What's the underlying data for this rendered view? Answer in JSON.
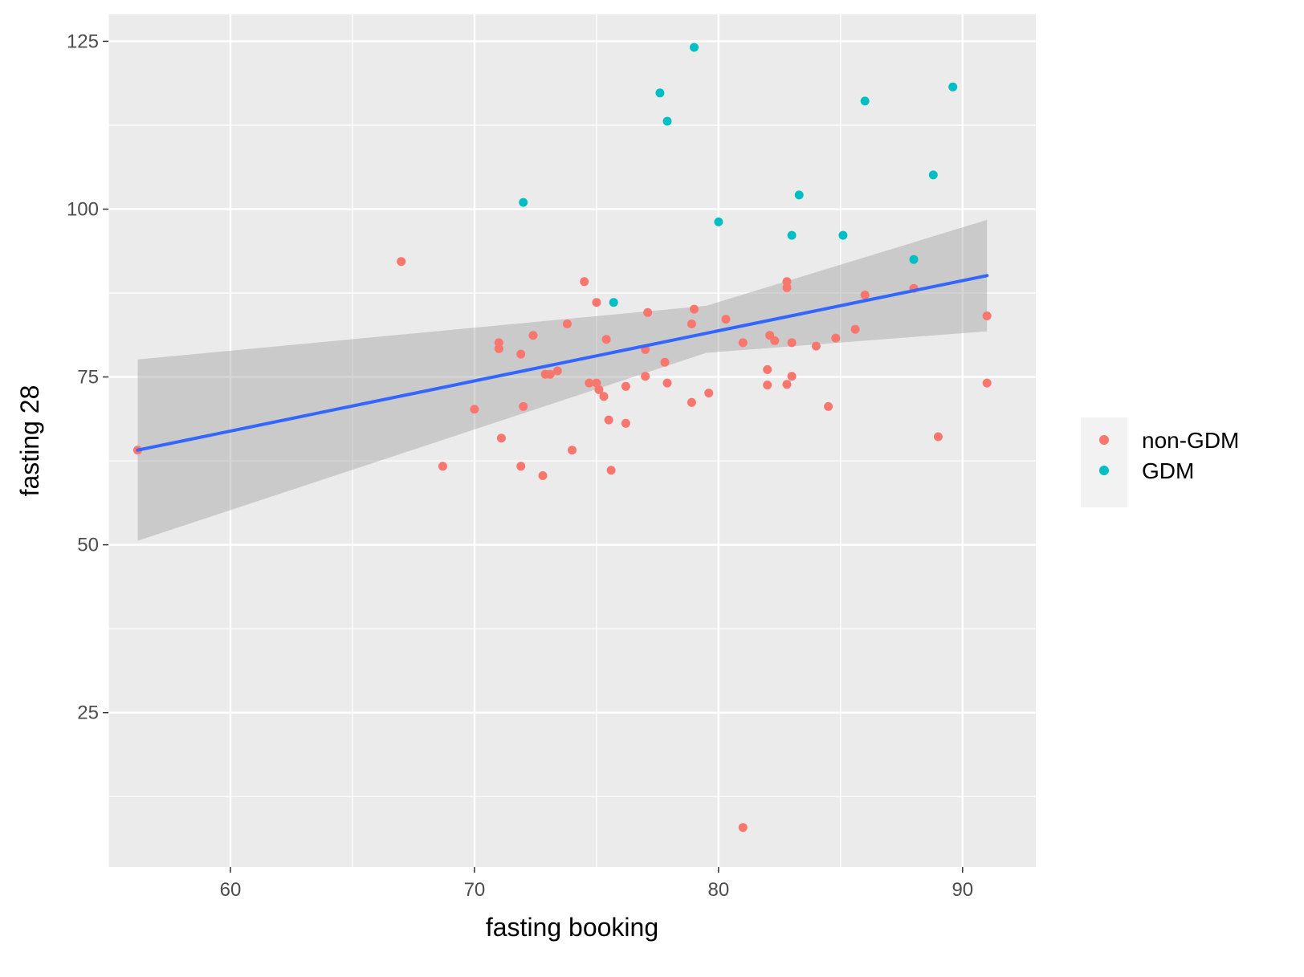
{
  "chart_data": {
    "type": "scatter",
    "xlabel": "fasting  booking",
    "ylabel": "fasting  28",
    "xlim": [
      55,
      93
    ],
    "ylim": [
      2,
      129
    ],
    "x_ticks": [
      60,
      70,
      80,
      90
    ],
    "y_ticks": [
      25,
      50,
      75,
      100,
      125
    ],
    "grid": true,
    "legend_position": "right",
    "series": [
      {
        "name": "non-GDM",
        "color": "#F8766D",
        "points": [
          [
            56.2,
            64.1
          ],
          [
            67,
            92.2
          ],
          [
            68.7,
            61.7
          ],
          [
            70,
            70.2
          ],
          [
            71,
            80.1
          ],
          [
            71,
            79.2
          ],
          [
            71.1,
            65.9
          ],
          [
            71.9,
            78.4
          ],
          [
            71.9,
            61.7
          ],
          [
            72,
            70.6
          ],
          [
            72.4,
            81.2
          ],
          [
            72.8,
            60.3
          ],
          [
            72.9,
            75.4
          ],
          [
            73.1,
            75.4
          ],
          [
            73.4,
            75.9
          ],
          [
            73.8,
            82.9
          ],
          [
            74,
            64.1
          ],
          [
            74.5,
            89.2
          ],
          [
            74.7,
            74.1
          ],
          [
            75,
            86.1
          ],
          [
            75,
            74.1
          ],
          [
            75.1,
            73.1
          ],
          [
            75.3,
            72.1
          ],
          [
            75.4,
            80.6
          ],
          [
            75.5,
            68.6
          ],
          [
            75.6,
            61.1
          ],
          [
            76.2,
            73.6
          ],
          [
            76.2,
            68.1
          ],
          [
            77,
            79.1
          ],
          [
            77,
            75.1
          ],
          [
            77.1,
            84.6
          ],
          [
            77.8,
            77.2
          ],
          [
            77.9,
            74.1
          ],
          [
            78.9,
            82.9
          ],
          [
            78.9,
            71.2
          ],
          [
            79,
            85.1
          ],
          [
            79.6,
            72.6
          ],
          [
            80.3,
            83.6
          ],
          [
            81,
            80.1
          ],
          [
            81,
            7.9
          ],
          [
            82,
            76.1
          ],
          [
            82,
            73.8
          ],
          [
            82.1,
            81.2
          ],
          [
            82.3,
            80.4
          ],
          [
            82.8,
            89.2
          ],
          [
            82.8,
            88.3
          ],
          [
            82.8,
            73.9
          ],
          [
            83,
            80.1
          ],
          [
            83,
            75.1
          ],
          [
            84,
            79.6
          ],
          [
            84.5,
            70.6
          ],
          [
            84.8,
            80.8
          ],
          [
            85.6,
            82.1
          ],
          [
            86,
            87.2
          ],
          [
            88,
            88.2
          ],
          [
            89,
            66.1
          ],
          [
            91,
            84.1
          ],
          [
            91,
            74.1
          ]
        ]
      },
      {
        "name": "GDM",
        "color": "#00BFC4",
        "points": [
          [
            72,
            101
          ],
          [
            75.7,
            86.1
          ],
          [
            77.6,
            117.3
          ],
          [
            77.9,
            113.1
          ],
          [
            79,
            124.1
          ],
          [
            80,
            98.1
          ],
          [
            83,
            96.1
          ],
          [
            83.3,
            102.1
          ],
          [
            85.1,
            96.1
          ],
          [
            86,
            116.1
          ],
          [
            88,
            92.5
          ],
          [
            88.8,
            105.1
          ],
          [
            89.6,
            118.2
          ]
        ]
      }
    ],
    "fit": {
      "method": "linear",
      "color": "#3366FF",
      "x_range": [
        56.2,
        91
      ],
      "y_at_ends": [
        64.1,
        90.1
      ],
      "band_lower": [
        50.6,
        81.8
      ],
      "band_upper": [
        77.6,
        98.4
      ],
      "band_mid_x": 79.5,
      "band_mid_lower": 78.6,
      "band_mid_upper": 85.6
    }
  }
}
